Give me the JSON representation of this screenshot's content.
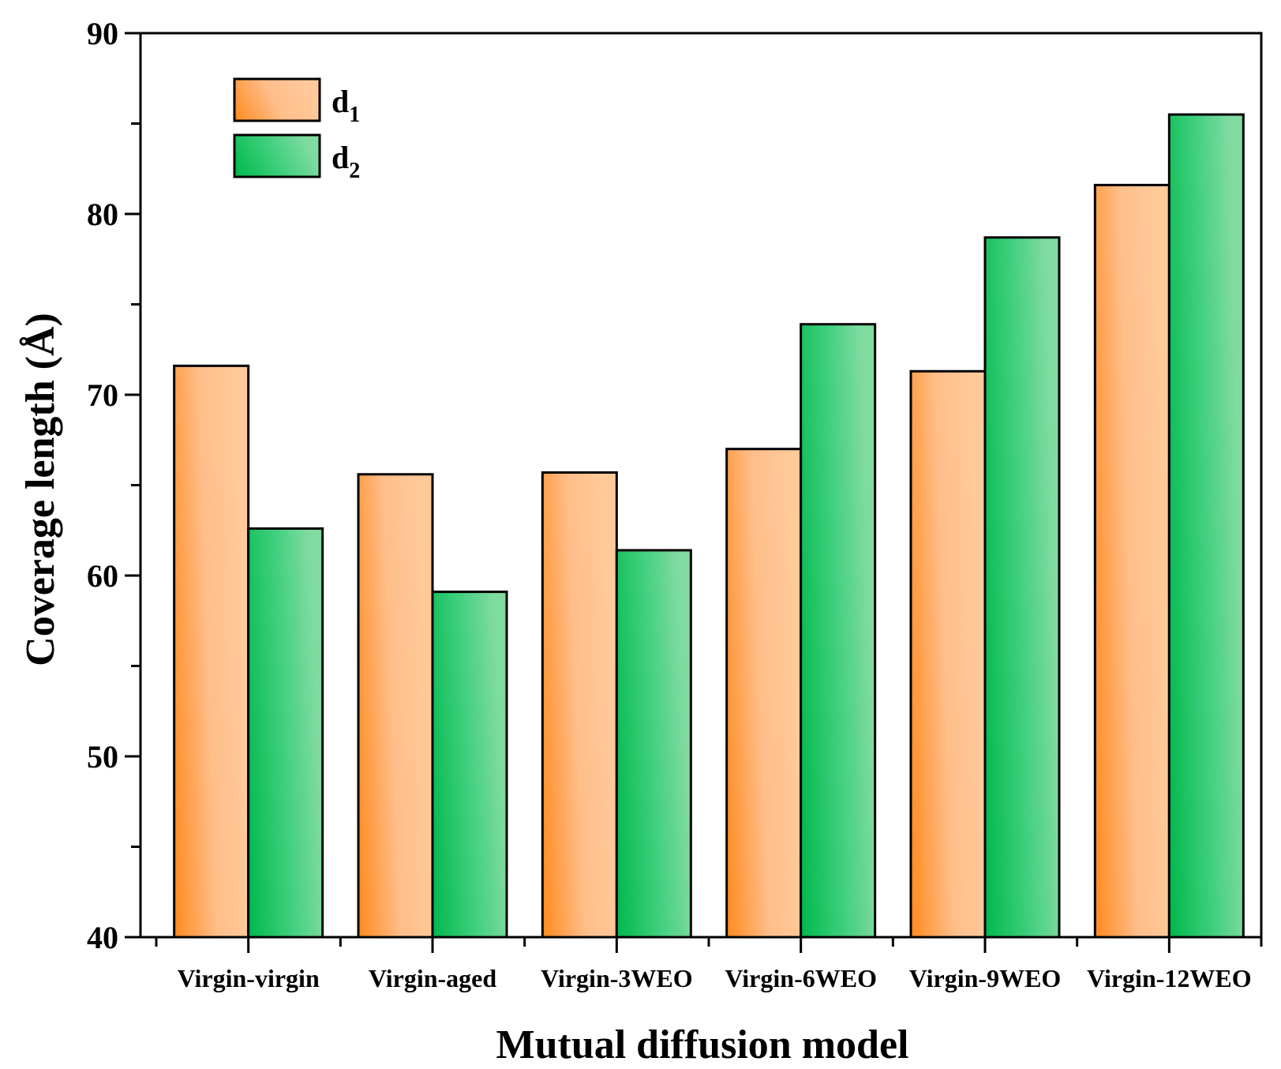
{
  "chart_data": {
    "type": "bar",
    "title": "",
    "xlabel": "Mutual diffusion model",
    "ylabel": "Coverage length (Å)",
    "ylim": [
      40,
      90
    ],
    "yticks": [
      40,
      50,
      60,
      70,
      80,
      90
    ],
    "grid": false,
    "legend_position": "top-left",
    "categories": [
      "Virgin-virgin",
      "Virgin-aged",
      "Virgin-3WEO",
      "Virgin-6WEO",
      "Virgin-9WEO",
      "Virgin-12WEO"
    ],
    "series": [
      {
        "name": "d1",
        "label_main": "d",
        "label_sub": "1",
        "color": "#ff8a2a",
        "values": [
          71.6,
          65.6,
          65.7,
          67.0,
          71.3,
          81.6
        ]
      },
      {
        "name": "d2",
        "label_main": "d",
        "label_sub": "2",
        "color": "#12c25a",
        "values": [
          62.6,
          59.1,
          61.4,
          73.9,
          78.7,
          85.5
        ]
      }
    ]
  }
}
